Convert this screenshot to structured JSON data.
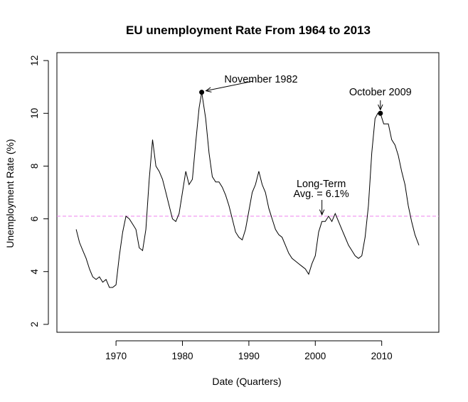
{
  "chart_data": {
    "type": "line",
    "title": "EU unemployment Rate From 1964 to 2013",
    "xlabel": "Date (Quarters)",
    "ylabel": "Unemployment Rate (%)",
    "xlim": [
      1961.1,
      2018.6
    ],
    "ylim": [
      1.7,
      12.3
    ],
    "xticks": [
      1970,
      1980,
      1990,
      2000,
      2010
    ],
    "yticks": [
      2,
      4,
      6,
      8,
      10,
      12
    ],
    "grid": false,
    "colors": {
      "line": "#000000",
      "avg_line": "#ee82ee",
      "frame": "#000000"
    },
    "reference_line": {
      "y": 6.1,
      "style": "dashed",
      "color": "#ee82ee"
    },
    "annotations": [
      {
        "label": "November 1982",
        "point_x": 1982.9,
        "point_y": 10.8,
        "marker": true
      },
      {
        "label": "October 2009",
        "point_x": 2009.8,
        "point_y": 10.0,
        "marker": true
      },
      {
        "label_lines": [
          "Long-Term",
          "Avg. = 6.1%"
        ],
        "point_x": 2001.0,
        "point_y": 6.1,
        "marker": false
      }
    ],
    "series": [
      {
        "x": [
          1964.0,
          1964.5,
          1965.0,
          1965.5,
          1966.0,
          1966.5,
          1967.0,
          1967.5,
          1968.0,
          1968.5,
          1969.0,
          1969.5,
          1970.0,
          1970.5,
          1971.0,
          1971.5,
          1972.0,
          1972.5,
          1973.0,
          1973.5,
          1974.0,
          1974.5,
          1975.0,
          1975.5,
          1976.0,
          1976.5,
          1977.0,
          1977.5,
          1978.0,
          1978.5,
          1979.0,
          1979.5,
          1980.0,
          1980.5,
          1981.0,
          1981.5,
          1982.0,
          1982.5,
          1982.9,
          1983.5,
          1984.0,
          1984.5,
          1985.0,
          1985.5,
          1986.0,
          1986.5,
          1987.0,
          1987.5,
          1988.0,
          1988.5,
          1989.0,
          1989.5,
          1990.0,
          1990.5,
          1991.0,
          1991.5,
          1992.0,
          1992.5,
          1993.0,
          1993.5,
          1994.0,
          1994.5,
          1995.0,
          1995.5,
          1996.0,
          1996.5,
          1997.0,
          1997.5,
          1998.0,
          1998.5,
          1999.0,
          1999.5,
          2000.0,
          2000.5,
          2001.0,
          2001.5,
          2002.0,
          2002.5,
          2003.0,
          2003.5,
          2004.0,
          2004.5,
          2005.0,
          2005.5,
          2006.0,
          2006.5,
          2007.0,
          2007.5,
          2008.0,
          2008.5,
          2009.0,
          2009.4,
          2009.8,
          2010.3,
          2011.0,
          2011.5,
          2012.0,
          2012.5,
          2013.0,
          2013.5,
          2014.0,
          2014.5,
          2015.0,
          2015.6
        ],
        "y": [
          5.6,
          5.1,
          4.8,
          4.5,
          4.1,
          3.8,
          3.7,
          3.8,
          3.6,
          3.7,
          3.4,
          3.4,
          3.5,
          4.6,
          5.5,
          6.1,
          6.0,
          5.8,
          5.6,
          4.9,
          4.8,
          5.6,
          7.5,
          9.0,
          8.0,
          7.8,
          7.5,
          7.0,
          6.5,
          6.0,
          5.9,
          6.2,
          7.0,
          7.8,
          7.3,
          7.5,
          8.9,
          10.2,
          10.8,
          9.8,
          8.5,
          7.6,
          7.4,
          7.4,
          7.2,
          6.9,
          6.5,
          6.0,
          5.5,
          5.3,
          5.2,
          5.6,
          6.3,
          7.0,
          7.3,
          7.8,
          7.3,
          7.0,
          6.4,
          6.0,
          5.6,
          5.4,
          5.3,
          5.0,
          4.7,
          4.5,
          4.4,
          4.3,
          4.2,
          4.1,
          3.9,
          4.3,
          4.6,
          5.5,
          5.9,
          5.9,
          6.1,
          5.9,
          6.2,
          5.9,
          5.6,
          5.3,
          5.0,
          4.8,
          4.6,
          4.5,
          4.6,
          5.3,
          6.5,
          8.5,
          9.8,
          10.0,
          10.0,
          9.6,
          9.6,
          9.0,
          8.8,
          8.4,
          7.8,
          7.3,
          6.5,
          5.9,
          5.4,
          5.0
        ]
      }
    ]
  }
}
